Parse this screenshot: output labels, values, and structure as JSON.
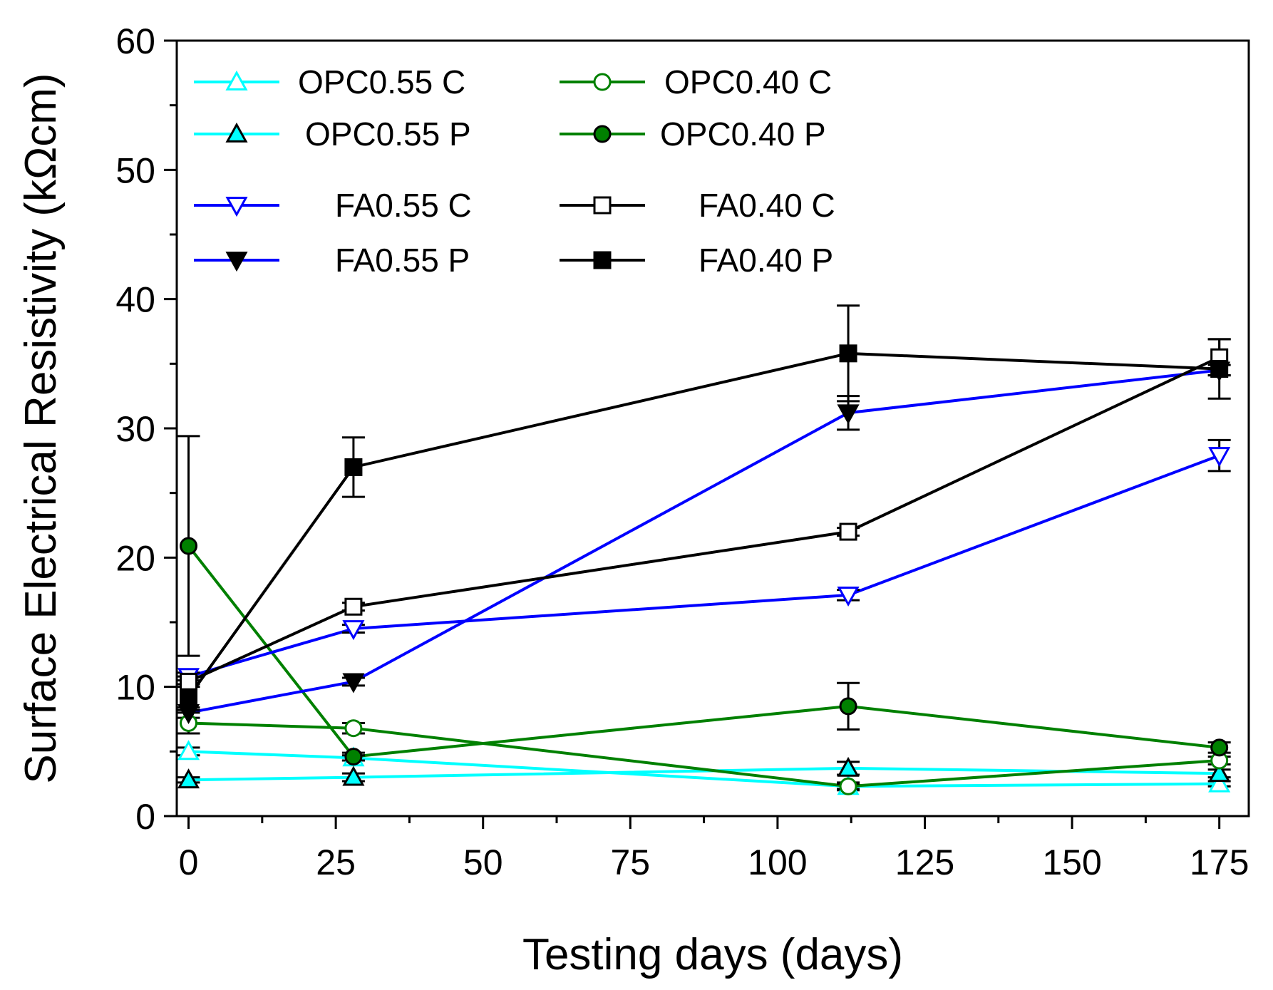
{
  "chart_data": {
    "type": "line",
    "xlabel": "Testing days (days)",
    "ylabel": "Surface Electrical Resistivity (kΩcm)",
    "xlim": [
      -2,
      180
    ],
    "ylim": [
      0,
      60
    ],
    "xticks": [
      0,
      25,
      50,
      75,
      100,
      125,
      150,
      175
    ],
    "yticks": [
      0,
      10,
      20,
      30,
      40,
      50,
      60
    ],
    "grid": false,
    "legend_position": "top-left",
    "series": [
      {
        "name": "OPC0.55 C",
        "color": "#00ffff",
        "marker": "triangle-up",
        "filled": false,
        "x": [
          0,
          28,
          112,
          175
        ],
        "y": [
          5.0,
          4.5,
          2.3,
          2.5
        ],
        "err": [
          0.3,
          0.2,
          0.2,
          0.2
        ]
      },
      {
        "name": "OPC0.55 P",
        "color": "#00ffff",
        "marker": "triangle-up",
        "filled": true,
        "x": [
          0,
          28,
          112,
          175
        ],
        "y": [
          2.8,
          3.0,
          3.7,
          3.3
        ],
        "err": [
          0.2,
          0.3,
          0.5,
          0.3
        ]
      },
      {
        "name": "OPC0.40 C",
        "color": "#008000",
        "marker": "circle",
        "filled": false,
        "x": [
          0,
          28,
          112,
          175
        ],
        "y": [
          7.2,
          6.8,
          2.3,
          4.3
        ],
        "err": [
          0.8,
          0.4,
          0.3,
          0.3
        ]
      },
      {
        "name": "OPC0.40 P",
        "color": "#008000",
        "marker": "circle",
        "filled": true,
        "x": [
          0,
          28,
          112,
          175
        ],
        "y": [
          20.9,
          4.6,
          8.5,
          5.3
        ],
        "err": [
          8.5,
          0.3,
          1.8,
          0.4
        ]
      },
      {
        "name": "FA0.55 C",
        "color": "#0000ff",
        "marker": "triangle-down",
        "filled": false,
        "x": [
          0,
          28,
          112,
          175
        ],
        "y": [
          10.8,
          14.5,
          17.1,
          27.9
        ],
        "err": [
          0.3,
          0.3,
          0.4,
          1.2
        ]
      },
      {
        "name": "FA0.55 P",
        "color": "#0000ff",
        "marker": "triangle-down",
        "filled": true,
        "x": [
          0,
          28,
          112,
          175
        ],
        "y": [
          8.0,
          10.4,
          31.2,
          34.5
        ],
        "err": [
          0.4,
          0.3,
          1.3,
          0.4
        ]
      },
      {
        "name": "FA0.40 C",
        "color": "#000000",
        "marker": "square",
        "filled": false,
        "x": [
          0,
          28,
          112,
          175
        ],
        "y": [
          10.4,
          16.2,
          22.0,
          35.5
        ],
        "err": [
          0.4,
          0.3,
          0.3,
          1.4
        ]
      },
      {
        "name": "FA0.40 P",
        "color": "#000000",
        "marker": "square",
        "filled": true,
        "x": [
          0,
          28,
          112,
          175
        ],
        "y": [
          9.2,
          27.0,
          35.8,
          34.6
        ],
        "err": [
          1.0,
          2.3,
          3.7,
          2.3
        ]
      }
    ]
  }
}
